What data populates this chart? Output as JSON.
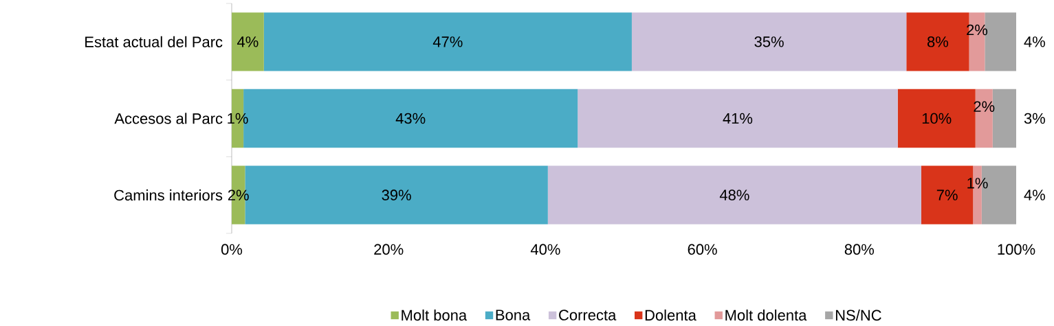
{
  "chart_data": {
    "type": "bar",
    "orientation": "horizontal",
    "stacked": true,
    "categories": [
      "Estat actual del Parc",
      "Accesos al Parc",
      "Camins interiors"
    ],
    "series": [
      {
        "name": "Molt bona",
        "color": "#9bbb59",
        "values": [
          4.1,
          1.5,
          1.7
        ],
        "value_labels": [
          "4%",
          "1%",
          "2%"
        ]
      },
      {
        "name": "Bona",
        "color": "#4bacc6",
        "values": [
          46.9,
          42.6,
          38.6
        ],
        "value_labels": [
          "47%",
          "43%",
          "39%"
        ]
      },
      {
        "name": "Correcta",
        "color": "#ccc1da",
        "values": [
          35.0,
          40.8,
          47.6
        ],
        "value_labels": [
          "35%",
          "41%",
          "48%"
        ]
      },
      {
        "name": "Dolenta",
        "color": "#d9341a",
        "values": [
          8.0,
          9.9,
          6.6
        ],
        "value_labels": [
          "8%",
          "10%",
          "7%"
        ]
      },
      {
        "name": "Molt dolenta",
        "color": "#e29a9a",
        "values": [
          2.0,
          2.2,
          1.1
        ],
        "value_labels": [
          "2%",
          "2%",
          "1%"
        ]
      },
      {
        "name": "NS/NC",
        "color": "#a6a6a6",
        "values": [
          4.0,
          3.0,
          4.4
        ],
        "value_labels": [
          "4%",
          "3%",
          "4%"
        ]
      }
    ],
    "xlim": [
      0,
      100
    ],
    "xticks": [
      {
        "value": 0,
        "label": "0%"
      },
      {
        "value": 20,
        "label": "20%"
      },
      {
        "value": 40,
        "label": "40%"
      },
      {
        "value": 60,
        "label": "60%"
      },
      {
        "value": 80,
        "label": "80%"
      },
      {
        "value": 100,
        "label": "100%"
      }
    ],
    "legend": "bottom"
  }
}
